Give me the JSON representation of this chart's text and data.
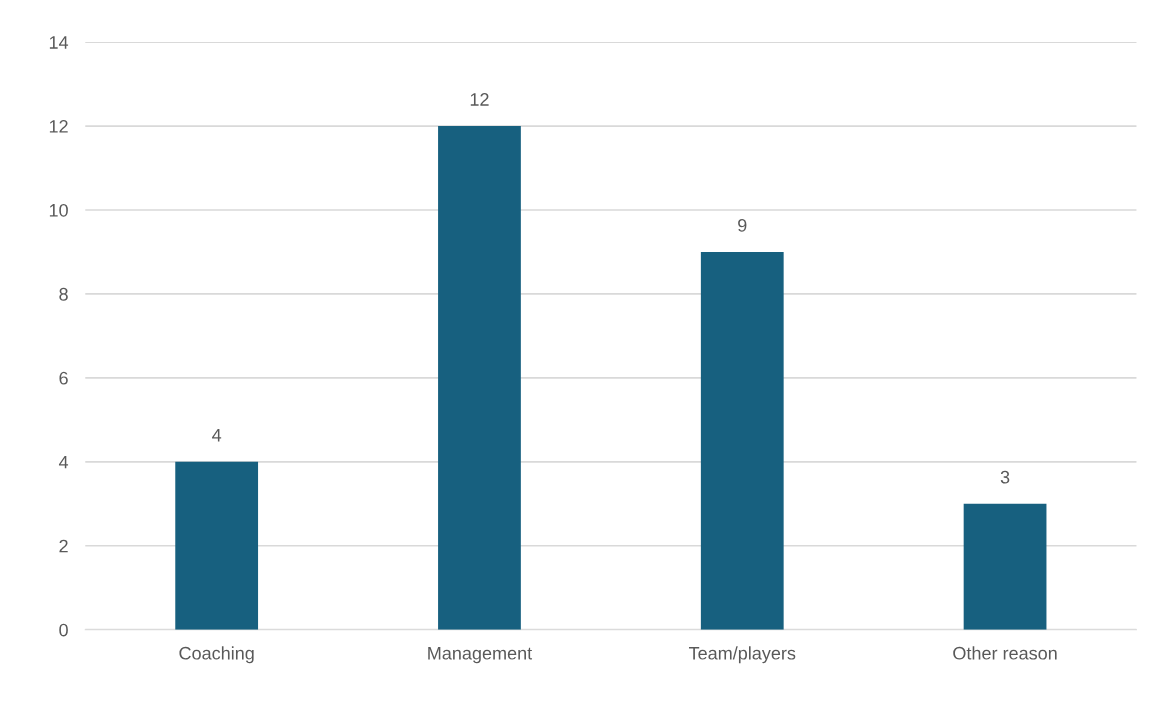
{
  "chart_data": {
    "type": "bar",
    "categories": [
      "Coaching",
      "Management",
      "Team/players",
      "Other reason"
    ],
    "values": [
      4,
      12,
      9,
      3
    ],
    "color": "#17607f",
    "ylim": [
      0,
      14
    ],
    "yticks": [
      0,
      2,
      4,
      6,
      8,
      10,
      12,
      14
    ],
    "grid": "y",
    "data_labels": true
  }
}
